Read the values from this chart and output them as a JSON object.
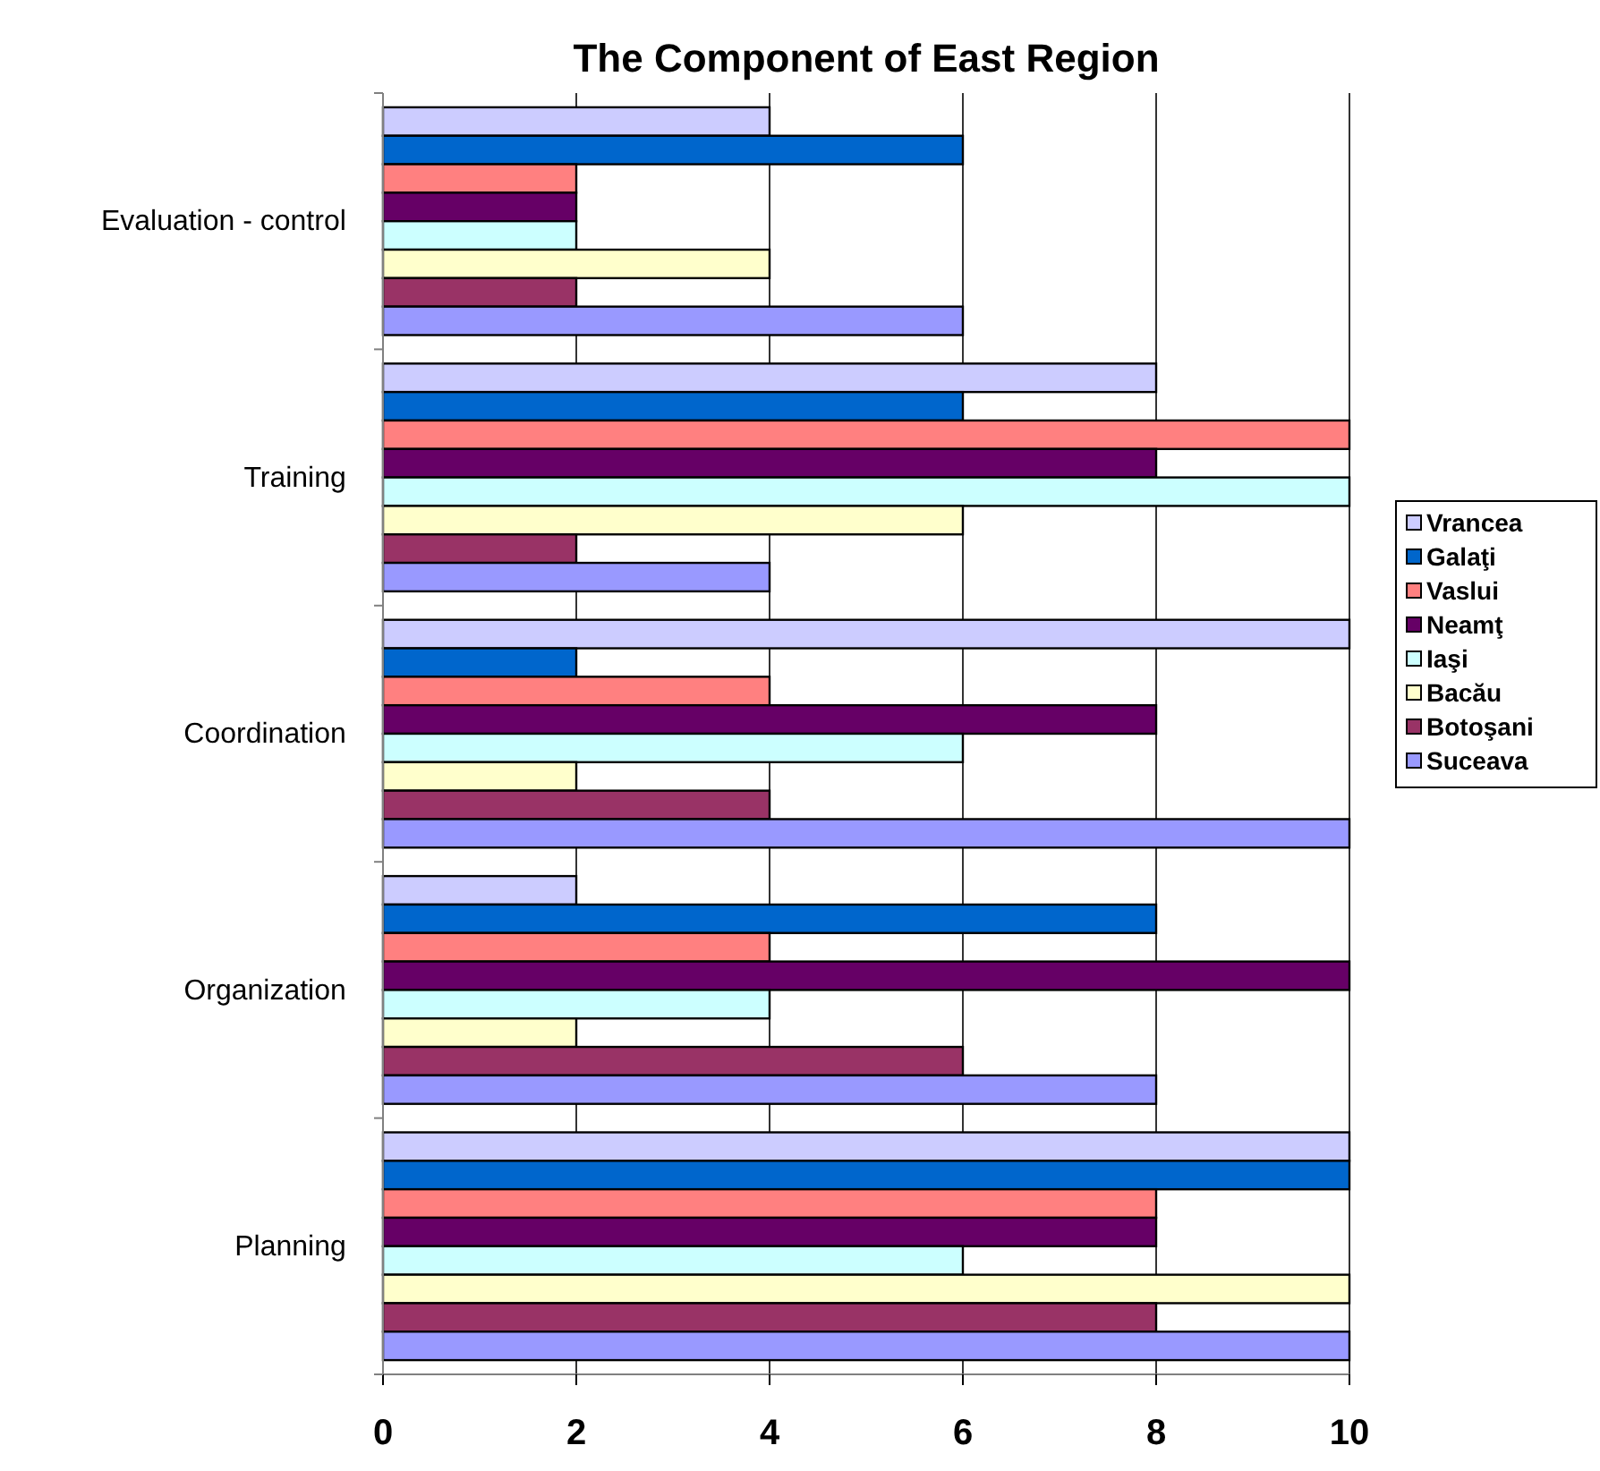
{
  "chart_data": {
    "type": "bar",
    "orientation": "horizontal",
    "title": "The Component of East Region",
    "categories": [
      "Evaluation - control",
      "Training",
      "Coordination",
      "Organization",
      "Planning"
    ],
    "series": [
      {
        "name": "Vrancea",
        "color": "#ccccff",
        "values": [
          4,
          8,
          10,
          2,
          10
        ]
      },
      {
        "name": "Galaţi",
        "color": "#0066cc",
        "values": [
          6,
          6,
          2,
          8,
          10
        ]
      },
      {
        "name": "Vaslui",
        "color": "#ff8080",
        "values": [
          2,
          10,
          4,
          4,
          8
        ]
      },
      {
        "name": "Neamţ",
        "color": "#660066",
        "values": [
          2,
          8,
          8,
          10,
          8
        ]
      },
      {
        "name": "Iaşi",
        "color": "#ccffff",
        "values": [
          2,
          10,
          6,
          4,
          6
        ]
      },
      {
        "name": "Bacău",
        "color": "#ffffcc",
        "values": [
          4,
          6,
          2,
          2,
          10
        ]
      },
      {
        "name": "Botoşani",
        "color": "#993366",
        "values": [
          2,
          2,
          4,
          6,
          8
        ]
      },
      {
        "name": "Suceava",
        "color": "#9999ff",
        "values": [
          6,
          4,
          10,
          8,
          10
        ]
      }
    ],
    "xlim": [
      0,
      10
    ],
    "xticks": [
      0,
      2,
      4,
      6,
      8,
      10
    ],
    "grid": "x",
    "legend": "right"
  }
}
